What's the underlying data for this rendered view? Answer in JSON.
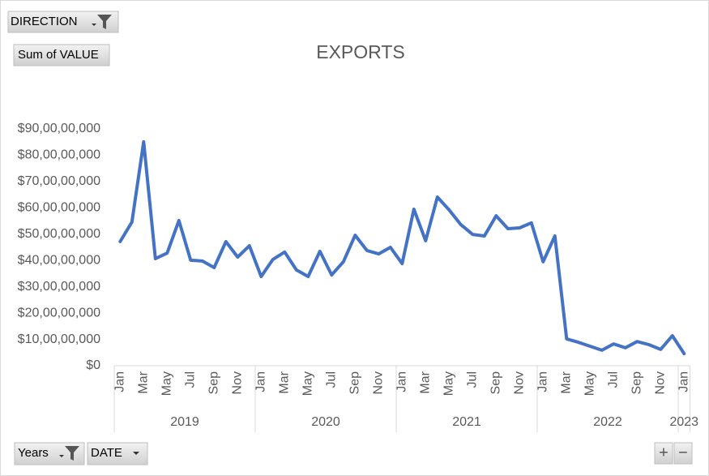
{
  "chart_data": {
    "type": "line",
    "title": "EXPORTS",
    "categories": [
      "Jan",
      null,
      "Mar",
      null,
      "May",
      null,
      "Jul",
      null,
      "Sep",
      null,
      "Nov",
      null,
      "Jan",
      null,
      "Mar",
      null,
      "May",
      null,
      "Jul",
      null,
      "Sep",
      null,
      "Nov",
      null,
      "Jan",
      null,
      "Mar",
      null,
      "May",
      null,
      "Jul",
      null,
      "Sep",
      null,
      "Nov",
      null,
      "Jan",
      null,
      "Mar",
      null,
      "May",
      null,
      "Jul",
      null,
      "Sep",
      null,
      "Nov",
      null,
      "Jan"
    ],
    "years": [
      "2019",
      "2020",
      "2021",
      "2022",
      "2023"
    ],
    "values": [
      472000000,
      546000000,
      851000000,
      407000000,
      428000000,
      552000000,
      401000000,
      398000000,
      373000000,
      472000000,
      413000000,
      456000000,
      339000000,
      404000000,
      432000000,
      364000000,
      339000000,
      435000000,
      345000000,
      395000000,
      496000000,
      438000000,
      425000000,
      450000000,
      388000000,
      595000000,
      475000000,
      641000000,
      592000000,
      536000000,
      499000000,
      493000000,
      570000000,
      521000000,
      524000000,
      543000000,
      395000000,
      493000000,
      102000000,
      89000000,
      74000000,
      59000000,
      83000000,
      68000000,
      92000000,
      80000000,
      62000000,
      114000000,
      46000000
    ],
    "color": "#4472c4",
    "ylim": [
      0,
      900000000
    ],
    "yticks": [
      {
        "value": 0,
        "label": "$0"
      },
      {
        "value": 100000000,
        "label": "$10,00,00,000"
      },
      {
        "value": 200000000,
        "label": "$20,00,00,000"
      },
      {
        "value": 300000000,
        "label": "$30,00,00,000"
      },
      {
        "value": 400000000,
        "label": "$40,00,00,000"
      },
      {
        "value": 500000000,
        "label": "$50,00,00,000"
      },
      {
        "value": 600000000,
        "label": "$60,00,00,000"
      },
      {
        "value": 700000000,
        "label": "$70,00,00,000"
      },
      {
        "value": 800000000,
        "label": "$80,00,00,000"
      },
      {
        "value": 900000000,
        "label": "$90,00,00,000"
      }
    ],
    "grid": false
  },
  "ui": {
    "filter_button": "DIRECTION",
    "value_button": "Sum of VALUE",
    "axis_buttons": [
      "Years",
      "DATE"
    ],
    "zoom_buttons": [
      "+",
      "−"
    ]
  }
}
